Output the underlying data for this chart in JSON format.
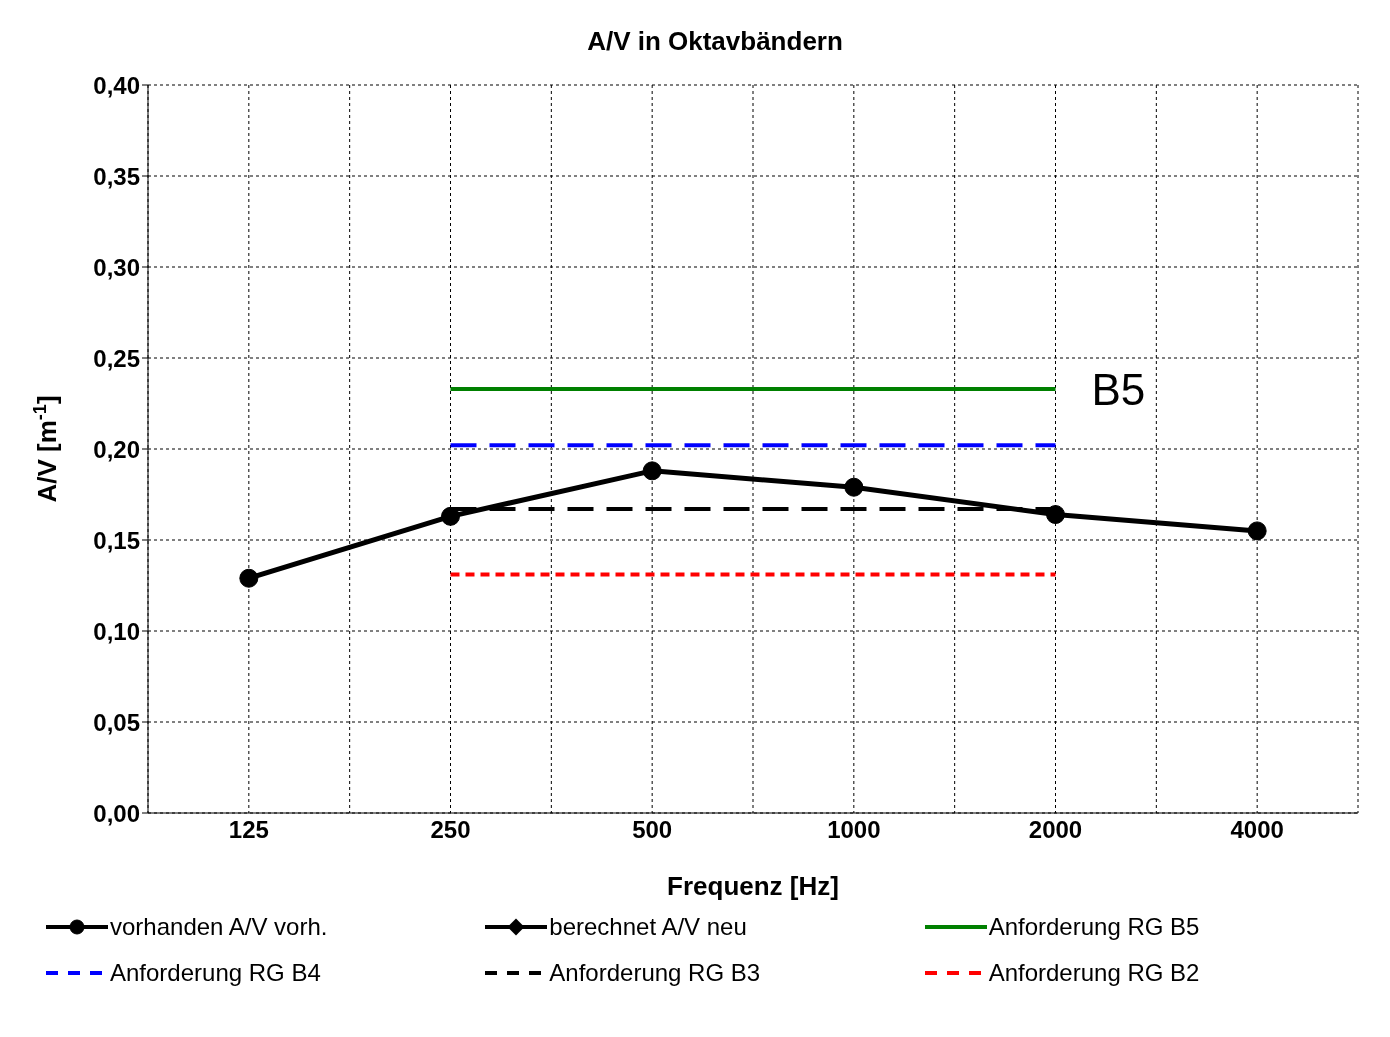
{
  "chart_data": {
    "type": "line",
    "title": "A/V in Oktavbändern",
    "xlabel": "Frequenz [Hz]",
    "ylabel": "A/V [m$^{-1}$]",
    "categories": [
      "125",
      "250",
      "500",
      "1000",
      "2000",
      "4000"
    ],
    "ylim": [
      0,
      0.4
    ],
    "yticks": [
      {
        "value": 0,
        "label": "0,00"
      },
      {
        "value": 0.05,
        "label": "0,05"
      },
      {
        "value": 0.1,
        "label": "0,10"
      },
      {
        "value": 0.15,
        "label": "0,15"
      },
      {
        "value": 0.2,
        "label": "0,20"
      },
      {
        "value": 0.25,
        "label": "0,25"
      },
      {
        "value": 0.3,
        "label": "0,30"
      },
      {
        "value": 0.35,
        "label": "0,35"
      },
      {
        "value": 0.4,
        "label": "0,40"
      }
    ],
    "grid": true,
    "legend": "bottom",
    "series": [
      {
        "name": "vorhanden A/V vorh.",
        "color": "#000000",
        "marker": "circle",
        "line_style": "solid",
        "values": [
          0.129,
          0.163,
          0.188,
          0.179,
          0.164,
          0.155
        ]
      },
      {
        "name": "berechnet A/V neu",
        "color": "#000000",
        "marker": "diamond",
        "line_style": "solid",
        "values": [
          null,
          null,
          null,
          null,
          null,
          null
        ]
      },
      {
        "name": "Anforderung RG B5",
        "color": "#008000",
        "marker": "none",
        "line_style": "solid",
        "values": [
          null,
          0.233,
          0.233,
          0.233,
          0.233,
          null
        ]
      },
      {
        "name": "Anforderung RG B4",
        "color": "#0000ff",
        "marker": "none",
        "line_style": "dashed",
        "values": [
          null,
          0.202,
          0.202,
          0.202,
          0.202,
          null
        ]
      },
      {
        "name": "Anforderung RG B3",
        "color": "#000000",
        "marker": "none",
        "line_style": "dashed",
        "values": [
          null,
          0.167,
          0.167,
          0.167,
          0.167,
          null
        ]
      },
      {
        "name": "Anforderung RG B2",
        "color": "#ff0000",
        "marker": "none",
        "line_style": "dotted",
        "values": [
          null,
          0.131,
          0.131,
          0.131,
          0.131,
          null
        ]
      }
    ],
    "annotations": [
      {
        "text": "B5",
        "x": "2000",
        "y": 0.233
      }
    ]
  }
}
